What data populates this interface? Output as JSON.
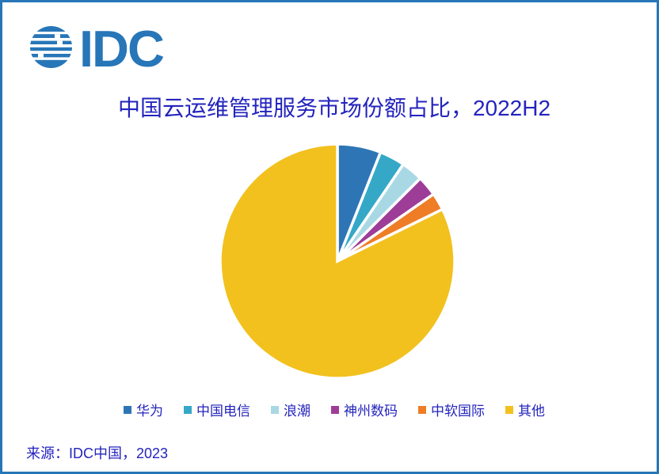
{
  "window": {
    "border_color": "#2776B8",
    "background_color": "#FFFFFF"
  },
  "logo": {
    "text": "IDC",
    "color": "#2776B8"
  },
  "title": {
    "text": "中国云运维管理服务市场份额占比，2022H2",
    "color": "#2424BE"
  },
  "source": {
    "text": "来源：IDC中国，2023"
  },
  "chart_data": {
    "type": "pie",
    "title": "中国云运维管理服务市场份额占比，2022H2",
    "unit": "percent_share",
    "start_angle_deg_from_top": 0,
    "clockwise": true,
    "slice_gap_color": "#FFFFFF",
    "legend_position": "bottom",
    "slices": [
      {
        "label": "华为",
        "value": 6.0,
        "color": "#2E75B6"
      },
      {
        "label": "中国电信",
        "value": 3.5,
        "color": "#35A8C8"
      },
      {
        "label": "浪潮",
        "value": 3.0,
        "color": "#A9D8E5"
      },
      {
        "label": "神州数码",
        "value": 2.8,
        "color": "#9E3D98"
      },
      {
        "label": "中软国际",
        "value": 2.4,
        "color": "#EE7D26"
      },
      {
        "label": "其他",
        "value": 82.3,
        "color": "#F2C11E"
      }
    ]
  }
}
